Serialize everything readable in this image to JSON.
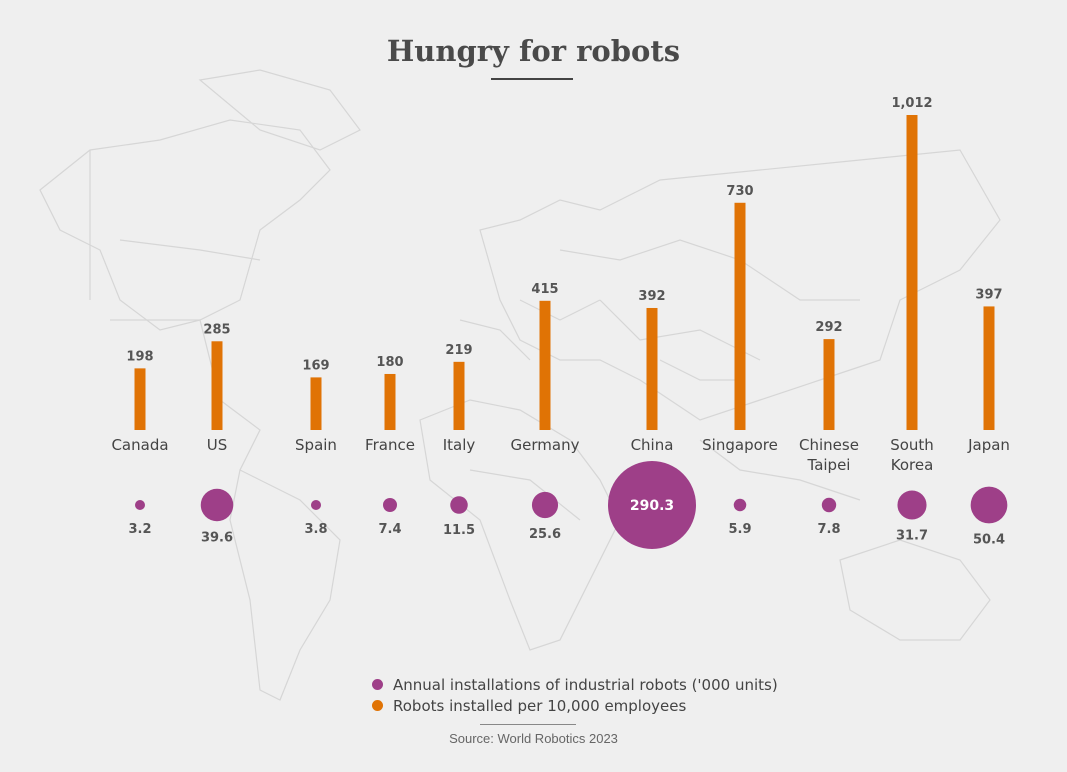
{
  "title": "Hungry for robots",
  "source": "Source: World Robotics 2023",
  "colors": {
    "bar": "#e07305",
    "bubble": "#9e3f88",
    "background": "#efefef"
  },
  "legend": {
    "installations": "Annual installations of industrial robots ('000 units)",
    "density": "Robots installed per 10,000 employees"
  },
  "chart_data": {
    "type": "bar",
    "categories": [
      "Canada",
      "US",
      "Spain",
      "France",
      "Italy",
      "Germany",
      "China",
      "Singapore",
      "Chinese Taipei",
      "South Korea",
      "Japan"
    ],
    "series": [
      {
        "name": "Robots installed per 10,000 employees",
        "values": [
          198,
          285,
          169,
          180,
          219,
          415,
          392,
          730,
          292,
          1012,
          397
        ],
        "labels": [
          "198",
          "285",
          "169",
          "180",
          "219",
          "415",
          "392",
          "730",
          "292",
          "1,012",
          "397"
        ]
      },
      {
        "name": "Annual installations of industrial robots ('000 units)",
        "values": [
          3.2,
          39.6,
          3.8,
          7.4,
          11.5,
          25.6,
          290.3,
          5.9,
          7.8,
          31.7,
          50.4
        ],
        "labels": [
          "3.2",
          "39.6",
          "3.8",
          "7.4",
          "11.5",
          "25.6",
          "290.3",
          "5.9",
          "7.8",
          "31.7",
          "50.4"
        ]
      }
    ]
  }
}
